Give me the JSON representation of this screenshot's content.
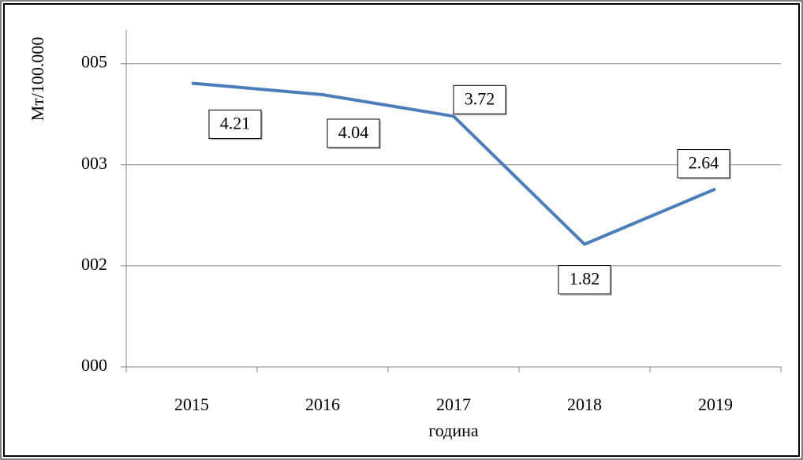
{
  "chart_data": {
    "type": "line",
    "x_label": "година",
    "y_label": "Мт/100.000",
    "categories": [
      "2015",
      "2016",
      "2017",
      "2018",
      "2019"
    ],
    "series": [
      {
        "name": "Мт/100.000",
        "color": "#4a7ebb",
        "values": [
          4.21,
          4.04,
          3.72,
          1.82,
          2.64
        ]
      }
    ],
    "ylim": [
      0,
      5
    ],
    "yticks": [
      {
        "value": 0,
        "label": "000"
      },
      {
        "value": 1.5,
        "label": "002"
      },
      {
        "value": 3,
        "label": "003"
      },
      {
        "value": 4.5,
        "label": "005"
      }
    ],
    "grid": true,
    "data_labels": true
  }
}
